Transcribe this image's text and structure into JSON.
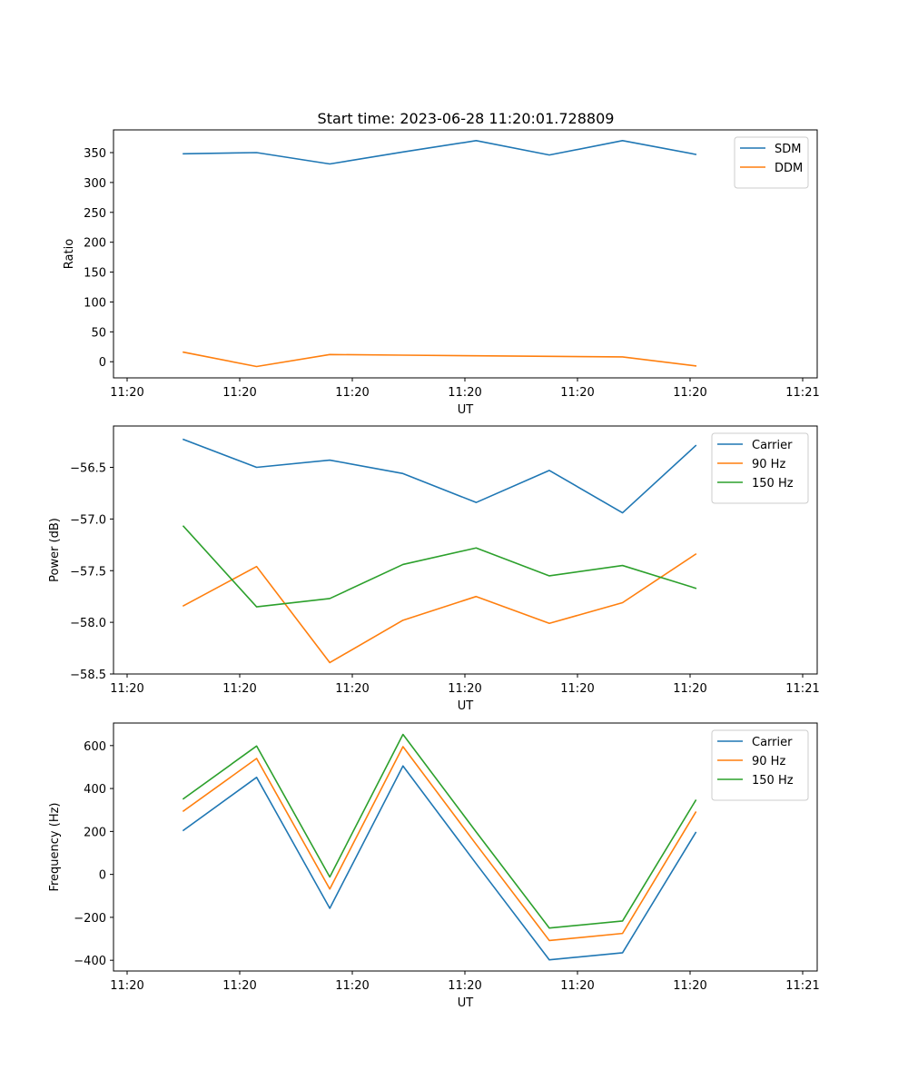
{
  "figure": {
    "title": "Start time: 2023-06-28 11:20:01.728809"
  },
  "chart_data": [
    {
      "type": "line",
      "title": "Start time: 2023-06-28 11:20:01.728809",
      "xlabel": "UT",
      "ylabel": "Ratio",
      "x_tick_labels": [
        "11:20",
        "11:20",
        "11:20",
        "11:20",
        "11:20",
        "11:20",
        "11:21"
      ],
      "xlim": [
        0,
        6
      ],
      "x": [
        0.5,
        1.15,
        1.8,
        2.45,
        3.1,
        3.75,
        4.4,
        5.05
      ],
      "yticks": [
        0,
        50,
        100,
        150,
        200,
        250,
        300,
        350
      ],
      "ylim": [
        -27,
        388
      ],
      "legend": "top-right",
      "series": [
        {
          "name": "SDM",
          "color": "#1f77b4",
          "values": [
            348,
            350,
            331,
            351,
            370,
            346,
            370,
            347
          ]
        },
        {
          "name": "DDM",
          "color": "#ff7f0e",
          "values": [
            16,
            -8,
            12,
            11,
            10,
            9,
            8,
            -7
          ]
        }
      ]
    },
    {
      "type": "line",
      "title": "",
      "xlabel": "UT",
      "ylabel": "Power (dB)",
      "x_tick_labels": [
        "11:20",
        "11:20",
        "11:20",
        "11:20",
        "11:20",
        "11:20",
        "11:21"
      ],
      "xlim": [
        0,
        6
      ],
      "x": [
        0.5,
        1.15,
        1.8,
        2.45,
        3.1,
        3.75,
        4.4,
        5.05
      ],
      "yticks": [
        -58.5,
        -58.0,
        -57.5,
        -57.0,
        -56.5
      ],
      "ytick_labels": [
        "−58.5",
        "−58.0",
        "−57.5",
        "−57.0",
        "−56.5"
      ],
      "ylim": [
        -58.5,
        -56.1
      ],
      "legend": "top-right",
      "series": [
        {
          "name": "Carrier",
          "color": "#1f77b4",
          "values": [
            -56.23,
            -56.5,
            -56.43,
            -56.56,
            -56.84,
            -56.53,
            -56.94,
            -56.29
          ]
        },
        {
          "name": "90 Hz",
          "color": "#ff7f0e",
          "values": [
            -57.84,
            -57.46,
            -58.39,
            -57.98,
            -57.75,
            -58.01,
            -57.81,
            -57.34
          ]
        },
        {
          "name": "150 Hz",
          "color": "#2ca02c",
          "values": [
            -57.07,
            -57.85,
            -57.77,
            -57.44,
            -57.28,
            -57.55,
            -57.45,
            -57.67
          ]
        }
      ]
    },
    {
      "type": "line",
      "title": "",
      "xlabel": "UT",
      "ylabel": "Frequency (Hz)",
      "x_tick_labels": [
        "11:20",
        "11:20",
        "11:20",
        "11:20",
        "11:20",
        "11:20",
        "11:21"
      ],
      "xlim": [
        0,
        6
      ],
      "x": [
        0.5,
        1.15,
        1.8,
        2.45,
        3.1,
        3.75,
        4.4,
        5.05
      ],
      "yticks": [
        -400,
        -200,
        0,
        200,
        400,
        600
      ],
      "ytick_labels": [
        "−400",
        "−200",
        "0",
        "200",
        "400",
        "600"
      ],
      "ylim": [
        -450,
        705
      ],
      "legend": "top-right",
      "series": [
        {
          "name": "Carrier",
          "color": "#1f77b4",
          "values": [
            205,
            452,
            -158,
            505,
            50,
            -398,
            -365,
            195
          ]
        },
        {
          "name": "90 Hz",
          "color": "#ff7f0e",
          "values": [
            295,
            540,
            -68,
            595,
            140,
            -308,
            -275,
            290
          ]
        },
        {
          "name": "150 Hz",
          "color": "#2ca02c",
          "values": [
            352,
            598,
            -12,
            652,
            198,
            -250,
            -217,
            345
          ]
        }
      ]
    }
  ]
}
